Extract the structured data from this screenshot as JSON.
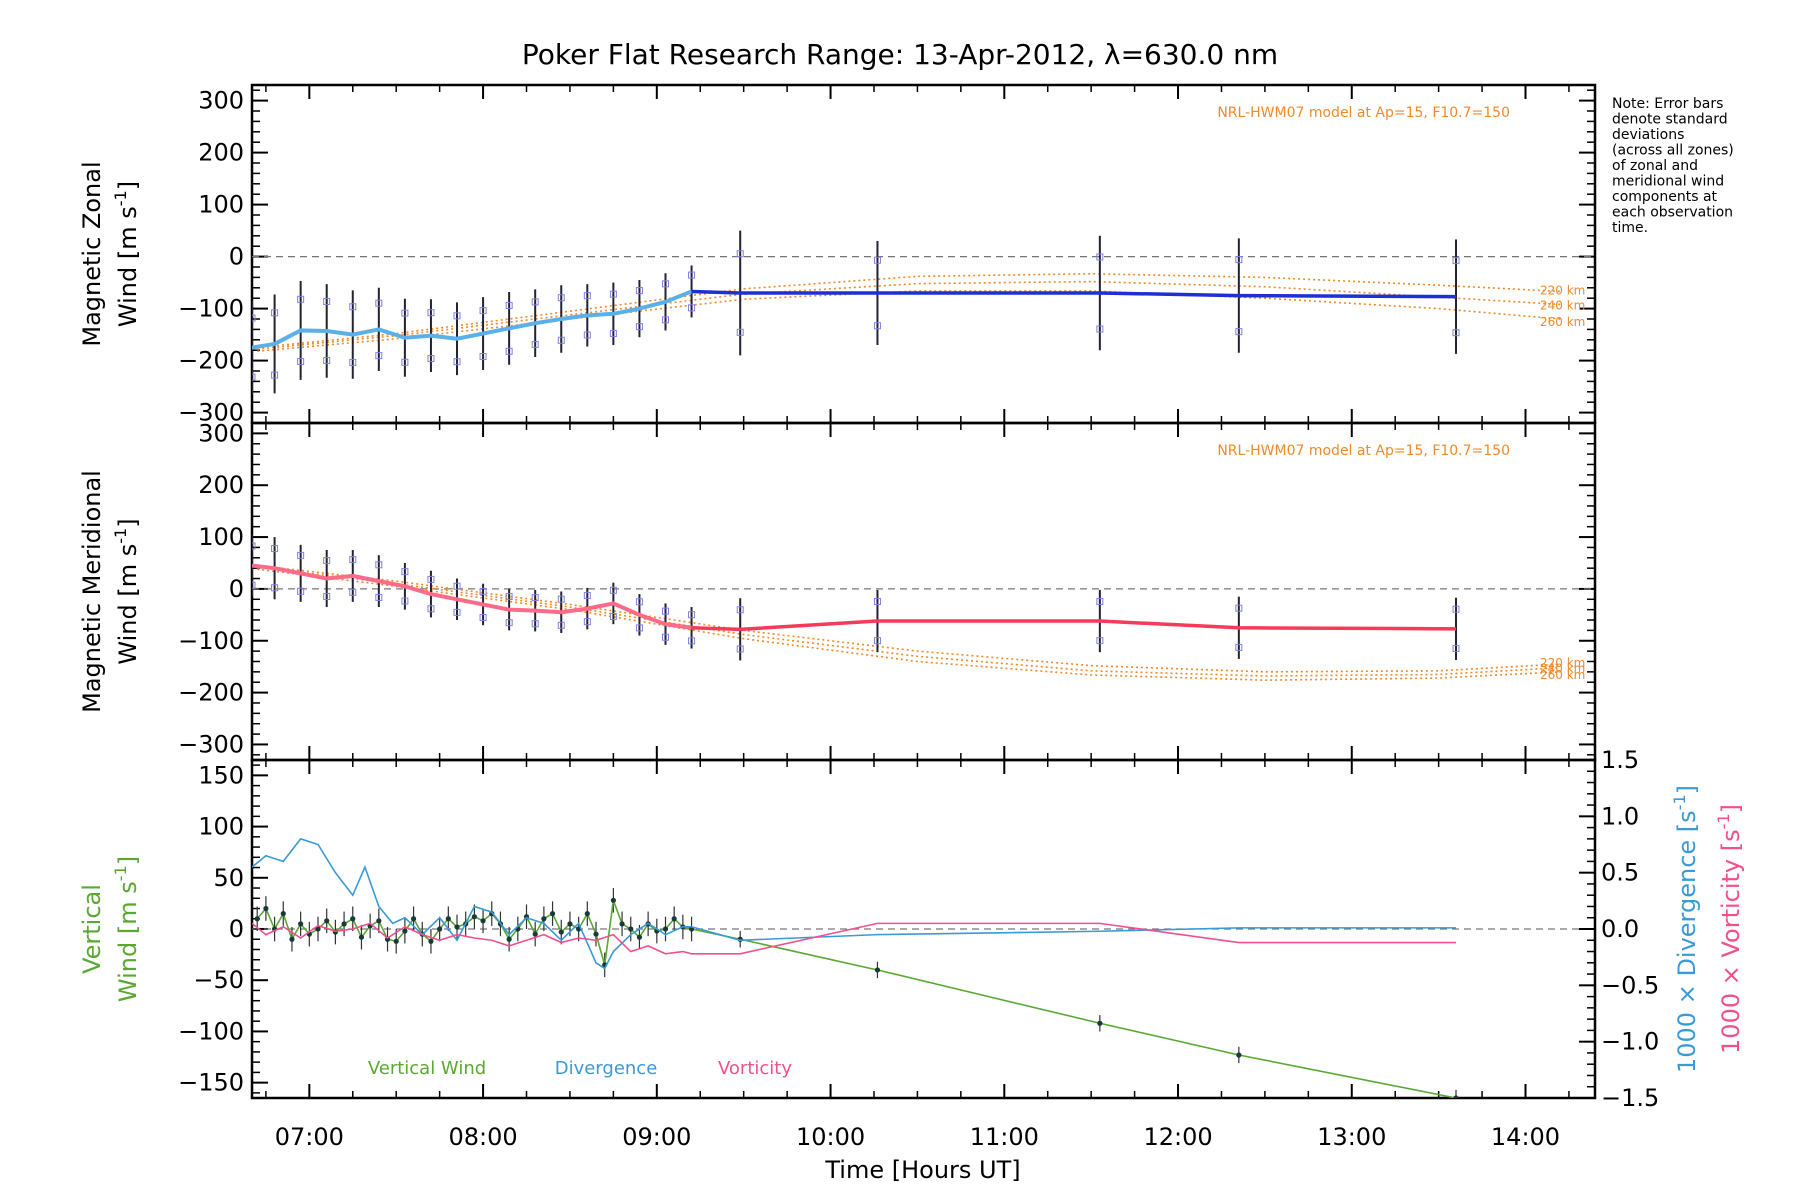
{
  "title": "Poker Flat Research Range: 13-Apr-2012, λ=630.0 nm",
  "note_lines": [
    "Note: Error bars",
    "denote standard",
    "deviations",
    "(across all zones)",
    "of zonal and",
    "meridional wind",
    "components at",
    "each observation",
    "time."
  ],
  "colors": {
    "zonal": "#1e2fd6",
    "meridional": "#f53a5a",
    "vertical": "#5aa832",
    "divergence": "#3a9ad6",
    "vorticity": "#f0508c",
    "model": "#f08a28",
    "scatter": "#8080e0",
    "axes": "#000000"
  },
  "chart_data": [
    {
      "type": "line",
      "panel": "zonal",
      "ylabel_line1": "Magnetic Zonal",
      "ylabel_line2": "Wind [m s",
      "ylabel_sup": "-1",
      "ylabel_end": "]",
      "xlim": [
        6.67,
        14.4
      ],
      "ylim": [
        -320,
        330
      ],
      "yticks": [
        -300,
        -200,
        -100,
        0,
        100,
        200,
        300
      ],
      "ytick_labels": [
        "−300",
        "−200",
        "−100",
        "0",
        "100",
        "200",
        "300"
      ],
      "model_label": "NRL-HWM07 model at Ap=15, F10.7=150",
      "model_series": [
        {
          "name": "220 km",
          "x": [
            6.7,
            7.5,
            8.5,
            9.5,
            10.5,
            11.5,
            12.5,
            13.5,
            14.2
          ],
          "values": [
            -175,
            -148,
            -105,
            -62,
            -38,
            -33,
            -40,
            -55,
            -67
          ]
        },
        {
          "name": "240 km",
          "x": [
            6.7,
            7.5,
            8.5,
            9.5,
            10.5,
            11.5,
            12.5,
            13.5,
            14.2
          ],
          "values": [
            -178,
            -152,
            -112,
            -72,
            -52,
            -48,
            -58,
            -78,
            -92
          ]
        },
        {
          "name": "260 km",
          "x": [
            6.7,
            7.5,
            8.5,
            9.5,
            10.5,
            11.5,
            12.5,
            13.5,
            14.2
          ],
          "values": [
            -182,
            -158,
            -120,
            -82,
            -66,
            -66,
            -80,
            -100,
            -120
          ]
        }
      ],
      "series": [
        {
          "name": "Zonal wind",
          "x": [
            6.67,
            6.8,
            6.95,
            7.1,
            7.25,
            7.4,
            7.55,
            7.7,
            7.85,
            8.0,
            8.15,
            8.3,
            8.45,
            8.6,
            8.75,
            8.9,
            9.05,
            9.2,
            9.48,
            10.27,
            11.55,
            12.35,
            13.6
          ],
          "values": [
            -175,
            -168,
            -142,
            -143,
            -150,
            -140,
            -156,
            -152,
            -158,
            -148,
            -138,
            -128,
            -120,
            -113,
            -110,
            -100,
            -87,
            -67,
            -70,
            -70,
            -70,
            -75,
            -77
          ],
          "errors": [
            90,
            95,
            95,
            90,
            85,
            80,
            75,
            70,
            70,
            70,
            70,
            65,
            65,
            60,
            60,
            55,
            55,
            50,
            120,
            100,
            110,
            110,
            110
          ]
        }
      ],
      "reference_line": 0
    },
    {
      "type": "line",
      "panel": "meridional",
      "ylabel_line1": "Magnetic Meridional",
      "ylabel_line2": "Wind [m s",
      "ylabel_sup": "-1",
      "ylabel_end": "]",
      "xlim": [
        6.67,
        14.4
      ],
      "ylim": [
        -330,
        320
      ],
      "yticks": [
        -300,
        -200,
        -100,
        0,
        100,
        200,
        300
      ],
      "ytick_labels": [
        "−300",
        "−200",
        "−100",
        "0",
        "100",
        "200",
        "300"
      ],
      "model_label": "NRL-HWM07 model at Ap=15, F10.7=150",
      "model_series": [
        {
          "name": "220 km",
          "x": [
            6.7,
            7.5,
            8.5,
            9.5,
            10.5,
            11.5,
            12.5,
            13.5,
            14.2
          ],
          "values": [
            45,
            15,
            -30,
            -80,
            -120,
            -148,
            -160,
            -158,
            -145
          ]
        },
        {
          "name": "240 km",
          "x": [
            6.7,
            7.5,
            8.5,
            9.5,
            10.5,
            11.5,
            12.5,
            13.5,
            14.2
          ],
          "values": [
            42,
            10,
            -35,
            -88,
            -130,
            -158,
            -168,
            -165,
            -152
          ]
        },
        {
          "name": "260 km",
          "x": [
            6.7,
            7.5,
            8.5,
            9.5,
            10.5,
            11.5,
            12.5,
            13.5,
            14.2
          ],
          "values": [
            38,
            5,
            -40,
            -96,
            -140,
            -166,
            -176,
            -172,
            -160
          ]
        }
      ],
      "series": [
        {
          "name": "Meridional wind",
          "x": [
            6.67,
            6.8,
            6.95,
            7.1,
            7.25,
            7.4,
            7.55,
            7.7,
            7.85,
            8.0,
            8.15,
            8.3,
            8.45,
            8.6,
            8.75,
            8.9,
            9.05,
            9.2,
            9.48,
            10.27,
            11.55,
            12.35,
            13.6
          ],
          "values": [
            45,
            40,
            30,
            20,
            25,
            15,
            5,
            -10,
            -20,
            -30,
            -40,
            -42,
            -45,
            -38,
            -28,
            -50,
            -68,
            -75,
            -78,
            -62,
            -62,
            -75,
            -77
          ],
          "errors": [
            60,
            60,
            55,
            55,
            50,
            50,
            45,
            45,
            40,
            40,
            40,
            40,
            40,
            40,
            40,
            40,
            40,
            40,
            60,
            60,
            60,
            60,
            60
          ]
        }
      ],
      "reference_line": 0
    },
    {
      "type": "line",
      "panel": "vertical",
      "ylabel_line1": "Vertical",
      "ylabel_line2": "Wind [m s",
      "ylabel_sup": "-1",
      "ylabel_end": "]",
      "right_label_div": "1000 × Divergence [s",
      "right_label_vort": "1000 × Vorticity [s",
      "right_label_sup": "-1",
      "right_label_end": "]",
      "xlim": [
        6.67,
        14.4
      ],
      "ylim": [
        -165,
        165
      ],
      "yticks": [
        -150,
        -100,
        -50,
        0,
        50,
        100,
        150
      ],
      "ytick_labels": [
        "−150",
        "−100",
        "−50",
        "0",
        "50",
        "100",
        "150"
      ],
      "y2lim": [
        -1.5,
        1.5
      ],
      "y2ticks": [
        -1.5,
        -1.0,
        -0.5,
        0.0,
        0.5,
        1.0,
        1.5
      ],
      "y2tick_labels": [
        "−1.5",
        "−1.0",
        "−0.5",
        "0.0",
        "0.5",
        "1.0",
        "1.5"
      ],
      "xtick_values": [
        7,
        8,
        9,
        10,
        11,
        12,
        13,
        14
      ],
      "xtick_labels": [
        "07:00",
        "08:00",
        "09:00",
        "10:00",
        "11:00",
        "12:00",
        "13:00",
        "14:00"
      ],
      "xlabel": "Time [Hours UT]",
      "legend": [
        "Vertical Wind",
        "Divergence",
        "Vorticity"
      ],
      "series": [
        {
          "name": "Vertical Wind",
          "axis": "left",
          "x": [
            6.7,
            6.75,
            6.8,
            6.85,
            6.9,
            6.95,
            7.0,
            7.05,
            7.1,
            7.15,
            7.2,
            7.25,
            7.3,
            7.35,
            7.4,
            7.45,
            7.5,
            7.55,
            7.6,
            7.65,
            7.7,
            7.75,
            7.8,
            7.85,
            7.9,
            7.95,
            8.0,
            8.05,
            8.1,
            8.15,
            8.2,
            8.25,
            8.3,
            8.35,
            8.4,
            8.45,
            8.5,
            8.55,
            8.6,
            8.65,
            8.7,
            8.75,
            8.8,
            8.85,
            8.9,
            8.95,
            9.0,
            9.05,
            9.1,
            9.15,
            9.2,
            9.48,
            10.27,
            11.55,
            12.35,
            13.6
          ],
          "values": [
            10,
            20,
            0,
            15,
            -10,
            5,
            -5,
            0,
            8,
            -3,
            5,
            10,
            -8,
            3,
            8,
            -10,
            -12,
            -2,
            10,
            -5,
            -12,
            0,
            10,
            2,
            5,
            12,
            8,
            15,
            5,
            -10,
            0,
            12,
            -5,
            10,
            15,
            -3,
            5,
            0,
            15,
            -5,
            -35,
            28,
            5,
            0,
            -8,
            5,
            -2,
            0,
            10,
            2,
            0,
            -10,
            -40,
            -92,
            -123,
            -165
          ],
          "errors": [
            12,
            12,
            12,
            12,
            12,
            12,
            12,
            12,
            12,
            12,
            12,
            12,
            12,
            12,
            12,
            12,
            12,
            12,
            12,
            12,
            12,
            12,
            12,
            12,
            12,
            12,
            12,
            12,
            12,
            12,
            12,
            12,
            12,
            12,
            12,
            12,
            12,
            12,
            12,
            12,
            12,
            12,
            12,
            12,
            12,
            12,
            12,
            12,
            12,
            12,
            12,
            8,
            8,
            8,
            8,
            8
          ]
        },
        {
          "name": "Divergence",
          "axis": "right",
          "x": [
            6.67,
            6.75,
            6.85,
            6.95,
            7.05,
            7.15,
            7.25,
            7.32,
            7.4,
            7.48,
            7.55,
            7.65,
            7.75,
            7.85,
            7.95,
            8.05,
            8.15,
            8.25,
            8.35,
            8.45,
            8.55,
            8.65,
            8.7,
            8.75,
            8.85,
            8.95,
            9.05,
            9.15,
            9.2,
            9.48,
            10.27,
            11.55,
            12.35,
            13.6
          ],
          "values": [
            0.55,
            0.65,
            0.6,
            0.8,
            0.75,
            0.5,
            0.3,
            0.55,
            0.2,
            0.05,
            0.1,
            -0.05,
            0.1,
            -0.1,
            0.2,
            0.15,
            -0.05,
            0.1,
            0.05,
            -0.1,
            0.05,
            -0.3,
            -0.35,
            -0.2,
            -0.05,
            0.05,
            -0.05,
            0.02,
            0.02,
            -0.1,
            -0.05,
            -0.02,
            0.01,
            0.01
          ]
        },
        {
          "name": "Vorticity",
          "axis": "right",
          "x": [
            6.67,
            6.75,
            6.85,
            6.95,
            7.05,
            7.15,
            7.25,
            7.35,
            7.45,
            7.55,
            7.65,
            7.75,
            7.85,
            7.95,
            8.05,
            8.15,
            8.25,
            8.35,
            8.45,
            8.55,
            8.65,
            8.75,
            8.85,
            8.95,
            9.05,
            9.15,
            9.2,
            9.48,
            10.27,
            11.55,
            12.35,
            13.6
          ],
          "values": [
            0.05,
            -0.05,
            0.02,
            -0.08,
            0.03,
            -0.02,
            0.0,
            0.05,
            -0.08,
            0.02,
            -0.05,
            -0.1,
            -0.05,
            -0.08,
            -0.1,
            -0.15,
            -0.1,
            -0.05,
            -0.12,
            -0.08,
            -0.1,
            -0.05,
            -0.2,
            -0.15,
            -0.22,
            -0.2,
            -0.22,
            -0.22,
            0.05,
            0.05,
            -0.12,
            -0.12
          ]
        }
      ],
      "reference_line": 0
    }
  ]
}
